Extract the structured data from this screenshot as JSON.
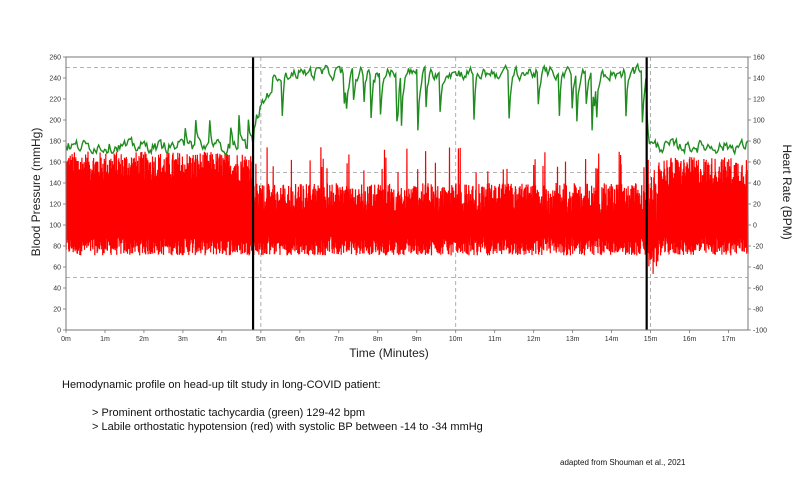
{
  "chart_data": {
    "type": "line",
    "title": "",
    "xlabel": "Time (Minutes)",
    "ylabel_left": "Blood Pressure (mmHg)",
    "ylabel_right": "Heart Rate (BPM)",
    "xlim": [
      0,
      17.5
    ],
    "ylim_left": [
      0,
      260
    ],
    "ylim_right": [
      -100,
      160
    ],
    "x_ticks": [
      0,
      1,
      2,
      3,
      4,
      5,
      6,
      7,
      8,
      9,
      10,
      11,
      12,
      13,
      14,
      15,
      16,
      17
    ],
    "x_tick_labels": [
      "0m",
      "1m",
      "2m",
      "3m",
      "4m",
      "5m",
      "6m",
      "7m",
      "8m",
      "9m",
      "10m",
      "11m",
      "12m",
      "13m",
      "14m",
      "15m",
      "16m",
      "17m"
    ],
    "y_ticks_left": [
      0,
      20,
      40,
      60,
      80,
      100,
      120,
      140,
      160,
      180,
      200,
      220,
      240,
      260
    ],
    "y_ticks_right": [
      -100,
      -80,
      -60,
      -40,
      -20,
      0,
      20,
      40,
      60,
      80,
      100,
      120,
      140,
      160
    ],
    "grid": "dashed, major ticks",
    "tilt_markers": [
      4.8,
      14.9
    ],
    "series": [
      {
        "axis": "right",
        "color": "#1e8c1e",
        "segments": [
          {
            "x_range": [
              0,
              4.8
            ],
            "approx_value": 75,
            "range": [
              60,
              105
            ]
          },
          {
            "x_range": [
              4.8,
              5.3
            ],
            "approx_value": 120,
            "range": [
              100,
              140
            ]
          },
          {
            "x_range": [
              5.3,
              14.9
            ],
            "approx_value": 145,
            "range": [
              90,
              155
            ]
          },
          {
            "x_range": [
              14.9,
              17.5
            ],
            "approx_value": 75,
            "range": [
              60,
              100
            ]
          }
        ]
      },
      {
        "axis": "left",
        "color": "#ff0000",
        "segments": [
          {
            "x_range": [
              0,
              4.8
            ],
            "systolic": 155,
            "diastolic": 80
          },
          {
            "x_range": [
              4.8,
              14.9
            ],
            "systolic": 125,
            "diastolic": 80,
            "spikes_to": 175
          },
          {
            "x_range": [
              14.9,
              17.5
            ],
            "systolic": 150,
            "diastolic": 80
          }
        ]
      }
    ]
  },
  "caption": {
    "heading": "Hemodynamic profile on head-up tilt study in long-COVID patient:",
    "bullet_1": "> Prominent orthostatic tachycardia (green) 129-42 bpm",
    "bullet_2": "> Labile orthostatic hypotension (red) with systolic BP between -14 to -34 mmHg"
  },
  "credit": "adapted from Shouman et al., 2021",
  "colors": {
    "heart_rate": "#1e8c1e",
    "blood_pressure": "#ff0000",
    "marker": "#000000",
    "grid": "#9a9a9a"
  }
}
